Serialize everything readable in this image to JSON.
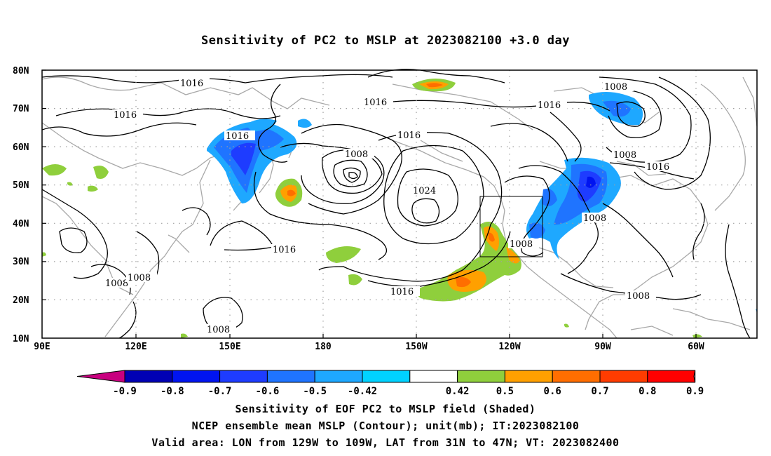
{
  "title": "Sensitivity of PC2 to MSLP at 2023082100 +3.0 day",
  "map": {
    "lat_labels": [
      "80N",
      "70N",
      "60N",
      "50N",
      "40N",
      "30N",
      "20N",
      "10N"
    ],
    "lon_labels": [
      "90E",
      "120E",
      "150E",
      "180",
      "150W",
      "120W",
      "90W",
      "60W"
    ],
    "contour_labels": [
      "1016",
      "1016",
      "1016",
      "1016",
      "1016",
      "1008",
      "1008",
      "1008",
      "1016",
      "1024",
      "1016",
      "1008",
      "1016",
      "1008",
      "1008",
      "1008",
      "1016",
      "1008",
      "1008",
      "1016"
    ],
    "valid_box": "LON 129W-109W, LAT 31N-47N"
  },
  "colorbar": {
    "labels": [
      "-0.9",
      "-0.8",
      "-0.7",
      "-0.6",
      "-0.5",
      "-0.42",
      "0.42",
      "0.5",
      "0.6",
      "0.7",
      "0.8",
      "0.9"
    ],
    "colors": [
      "#c8007f",
      "#0000b4",
      "#0014f0",
      "#1e3cff",
      "#1f74ff",
      "#1ea8ff",
      "#00d2ff",
      "#ffffff",
      "#8fcf3c",
      "#ffa000",
      "#ff6e00",
      "#ff3c00",
      "#ff0000",
      "#f7a0c8"
    ]
  },
  "captions": {
    "line1": "Sensitivity of EOF PC2 to MSLP field (Shaded)",
    "line2": "NCEP ensemble mean MSLP (Contour); unit(mb); IT:2023082100",
    "line3": "Valid area: LON from 129W to 109W, LAT from 31N to 47N; VT: 2023082400"
  }
}
